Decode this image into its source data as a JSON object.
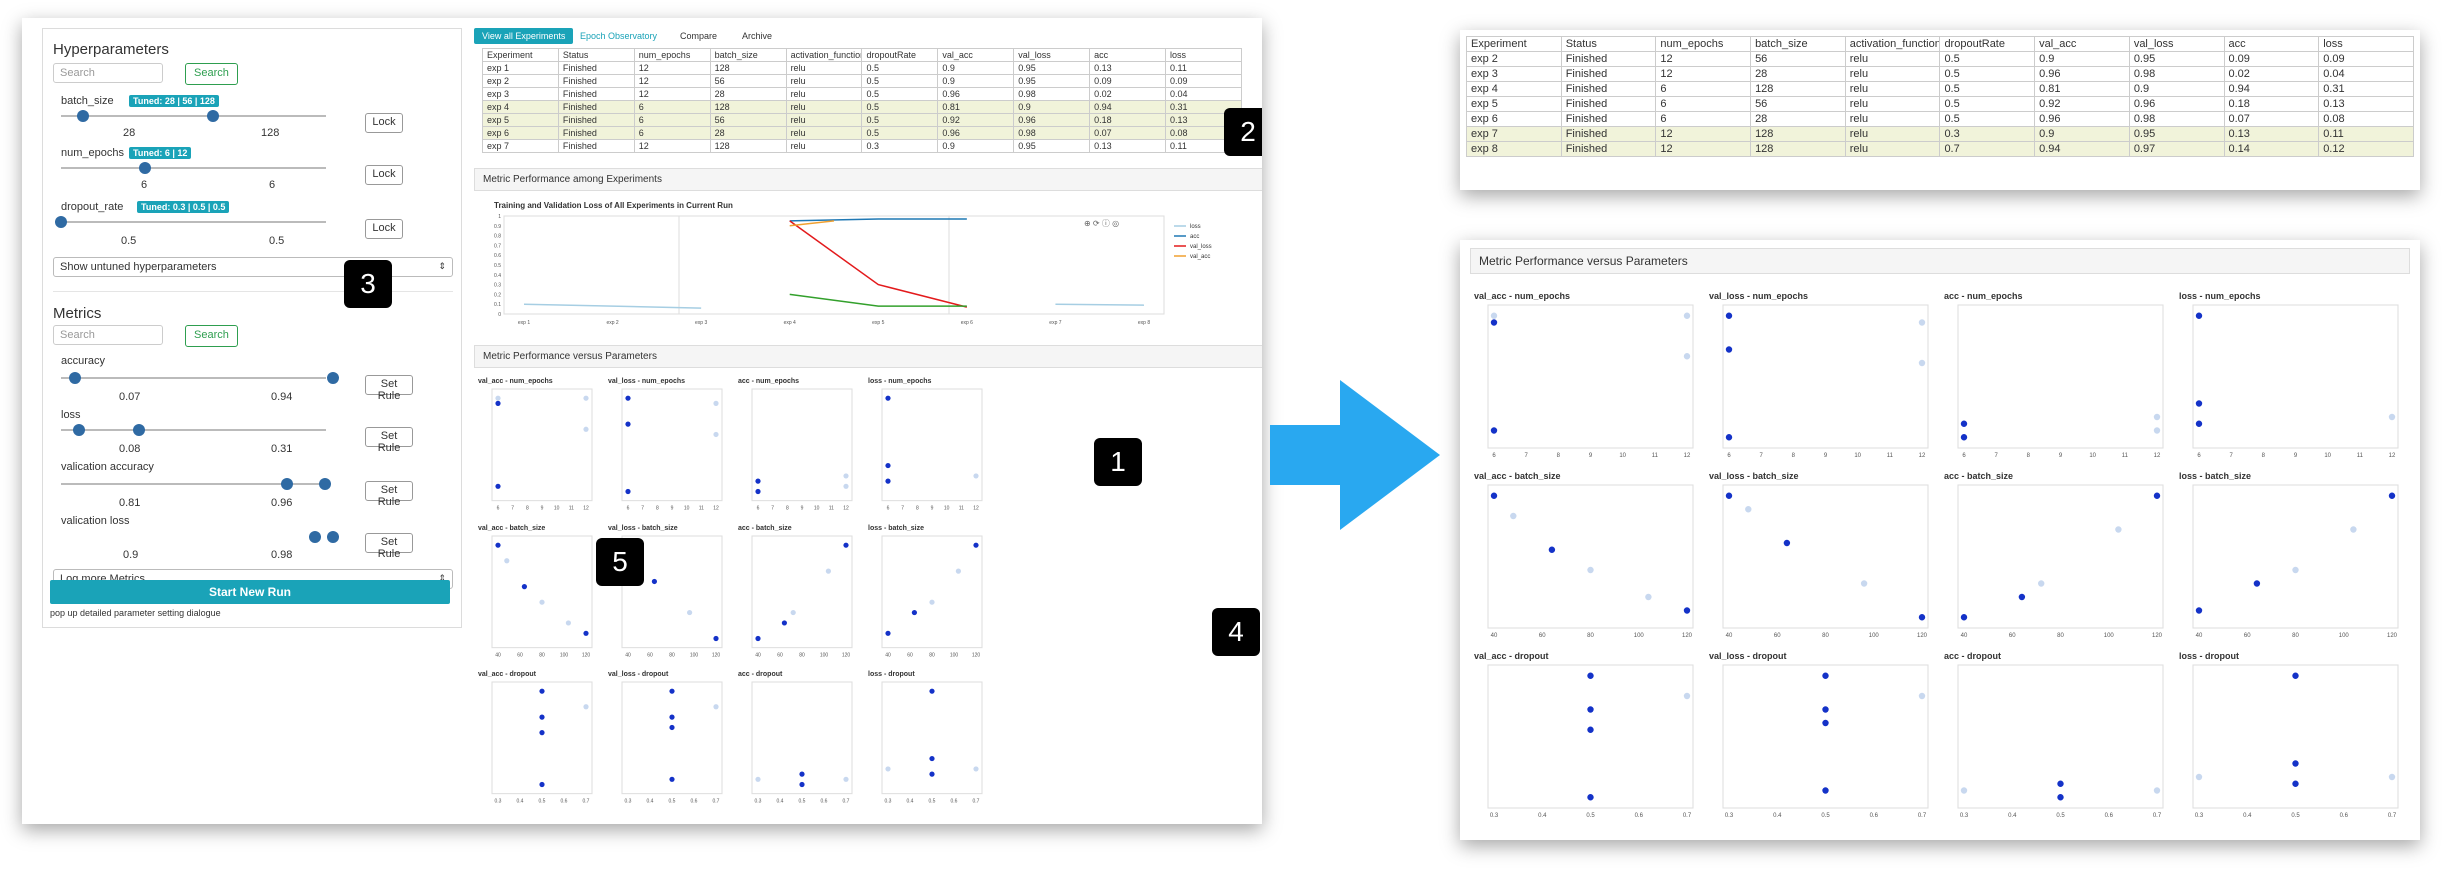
{
  "left": {
    "hyperparameters_title": "Hyperparameters",
    "search_placeholder": "Search",
    "search_label": "Search",
    "lock_label": "Lock",
    "params": [
      {
        "name": "batch_size",
        "tuned": "Tuned: 28 | 56 | 128",
        "min": "28",
        "max": "128"
      },
      {
        "name": "num_epochs",
        "tuned": "Tuned: 6 | 12",
        "min": "6",
        "max": "6"
      },
      {
        "name": "dropout_rate",
        "tuned": "Tuned: 0.3 | 0.5 | 0.5",
        "min": "0.5",
        "max": "0.5"
      }
    ],
    "untuned_select": "Show untuned hyperparameters",
    "metrics_title": "Metrics",
    "set_rule_label": "Set Rule",
    "metrics": [
      {
        "name": "accuracy",
        "min": "0.07",
        "max": "0.94"
      },
      {
        "name": "loss",
        "min": "0.08",
        "max": "0.31"
      },
      {
        "name": "valication accuracy",
        "min": "0.81",
        "max": "0.96"
      },
      {
        "name": "valication loss",
        "min": "0.9",
        "max": "0.98"
      }
    ],
    "log_more_select": "Log more Metrics",
    "start_button": "Start New Run",
    "popup_note": "pop up detailed parameter setting dialogue"
  },
  "tabs": [
    "View all Experiments",
    "Epoch Observatory",
    "Compare",
    "Archive"
  ],
  "table": {
    "headers": [
      "Experiment",
      "Status",
      "num_epochs",
      "batch_size",
      "activation_function",
      "dropoutRate",
      "val_acc",
      "val_loss",
      "acc",
      "loss"
    ],
    "rows": [
      [
        "exp 1",
        "Finished",
        "12",
        "128",
        "relu",
        "0.5",
        "0.9",
        "0.95",
        "0.13",
        "0.11"
      ],
      [
        "exp 2",
        "Finished",
        "12",
        "56",
        "relu",
        "0.5",
        "0.9",
        "0.95",
        "0.09",
        "0.09"
      ],
      [
        "exp 3",
        "Finished",
        "12",
        "28",
        "relu",
        "0.5",
        "0.96",
        "0.98",
        "0.02",
        "0.04"
      ],
      [
        "exp 4",
        "Finished",
        "6",
        "128",
        "relu",
        "0.5",
        "0.81",
        "0.9",
        "0.94",
        "0.31"
      ],
      [
        "exp 5",
        "Finished",
        "6",
        "56",
        "relu",
        "0.5",
        "0.92",
        "0.96",
        "0.18",
        "0.13"
      ],
      [
        "exp 6",
        "Finished",
        "6",
        "28",
        "relu",
        "0.5",
        "0.96",
        "0.98",
        "0.07",
        "0.08"
      ],
      [
        "exp 7",
        "Finished",
        "12",
        "128",
        "relu",
        "0.3",
        "0.9",
        "0.95",
        "0.13",
        "0.11"
      ]
    ],
    "highlighted": [
      3,
      4,
      5
    ]
  },
  "right_table": {
    "headers": [
      "Experiment",
      "Status",
      "num_epochs",
      "batch_size",
      "activation_function",
      "dropoutRate",
      "val_acc",
      "val_loss",
      "acc",
      "loss"
    ],
    "rows": [
      [
        "exp 2",
        "Finished",
        "12",
        "56",
        "relu",
        "0.5",
        "0.9",
        "0.95",
        "0.09",
        "0.09"
      ],
      [
        "exp 3",
        "Finished",
        "12",
        "28",
        "relu",
        "0.5",
        "0.96",
        "0.98",
        "0.02",
        "0.04"
      ],
      [
        "exp 4",
        "Finished",
        "6",
        "128",
        "relu",
        "0.5",
        "0.81",
        "0.9",
        "0.94",
        "0.31"
      ],
      [
        "exp 5",
        "Finished",
        "6",
        "56",
        "relu",
        "0.5",
        "0.92",
        "0.96",
        "0.18",
        "0.13"
      ],
      [
        "exp 6",
        "Finished",
        "6",
        "28",
        "relu",
        "0.5",
        "0.96",
        "0.98",
        "0.07",
        "0.08"
      ],
      [
        "exp 7",
        "Finished",
        "12",
        "128",
        "relu",
        "0.3",
        "0.9",
        "0.95",
        "0.13",
        "0.11"
      ],
      [
        "exp 8",
        "Finished",
        "12",
        "128",
        "relu",
        "0.7",
        "0.94",
        "0.97",
        "0.14",
        "0.12"
      ]
    ],
    "highlighted": [
      5,
      6
    ]
  },
  "metric_perf_title": "Metric Performance among Experiments",
  "metric_vs_params_title": "Metric Performance versus Parameters",
  "line_chart": {
    "title": "Training and Validation Loss of All Experiments in Current Run",
    "legend": [
      "loss",
      "acc",
      "val_loss",
      "val_acc"
    ],
    "colors": [
      "#a6cee3",
      "#1f78b4",
      "#e31a1c",
      "#33a02c"
    ],
    "x_labels": [
      "exp 1",
      "exp 2",
      "exp 3",
      "exp 4",
      "exp 5",
      "exp 6",
      "exp 7",
      "exp 8"
    ],
    "y_ticks": [
      "1",
      "0.9",
      "0.8",
      "0.7",
      "0.6",
      "0.5",
      "0.4",
      "0.3",
      "0.2",
      "0.1",
      "0"
    ]
  },
  "mini_grid_left": {
    "rows": [
      "num_epochs",
      "batch_size",
      "dropout"
    ],
    "cols": [
      "val_acc",
      "val_loss",
      "acc",
      "loss"
    ],
    "x_ticks": [
      [
        "6",
        "7",
        "8",
        "9",
        "10",
        "11",
        "12"
      ],
      [
        "40",
        "60",
        "80",
        "100",
        "120"
      ],
      [
        "0.3",
        "0.4",
        "0.5",
        "0.6",
        "0.7"
      ]
    ]
  },
  "mini_grid_right": {
    "rows": [
      "num_epochs",
      "batch_size",
      "dropout"
    ],
    "cols": [
      "val_acc",
      "val_loss",
      "acc",
      "loss"
    ],
    "x_ticks": [
      [
        "6",
        "7",
        "8",
        "9",
        "10",
        "11",
        "12"
      ],
      [
        "40",
        "60",
        "80",
        "100",
        "120"
      ],
      [
        "0.3",
        "0.4",
        "0.5",
        "0.6",
        "0.7"
      ]
    ]
  },
  "callouts": [
    "1",
    "2",
    "3",
    "4",
    "5"
  ],
  "arrow_color": "#29a8f0",
  "point_color": "#1432c8",
  "faded_point_color": "#c8d8ef",
  "accent": "#1aa3b8"
}
